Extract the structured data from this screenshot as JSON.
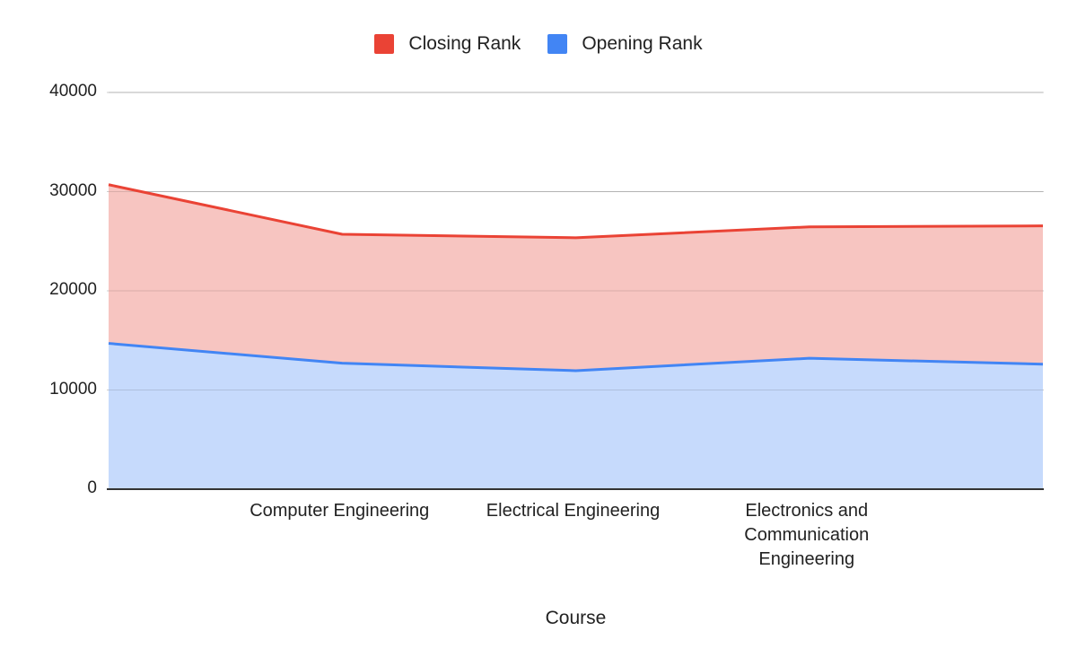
{
  "legend": {
    "items": [
      {
        "label": "Closing Rank",
        "color": "#ea4335"
      },
      {
        "label": "Opening Rank",
        "color": "#4285f4"
      }
    ]
  },
  "axes": {
    "x_title": "Course",
    "y_ticks": [
      "40000",
      "30000",
      "20000",
      "10000",
      "0"
    ],
    "x_visible_labels": [
      {
        "index": 1,
        "lines": [
          "Computer Engineering"
        ]
      },
      {
        "index": 2,
        "lines": [
          "Electrical Engineering"
        ]
      },
      {
        "index": 3,
        "lines": [
          "Electronics and",
          "Communication",
          "Engineering"
        ]
      }
    ]
  },
  "colors": {
    "closing_line": "#ea4335",
    "closing_fill": "#f7c5c1",
    "opening_line": "#4285f4",
    "opening_fill": "#c6dafc",
    "grid": "#cccccc",
    "axis": "#333333"
  },
  "chart_data": {
    "type": "area",
    "title": "",
    "xlabel": "Course",
    "ylabel": "",
    "ylim": [
      0,
      40000
    ],
    "yticks": [
      0,
      10000,
      20000,
      30000,
      40000
    ],
    "grid": true,
    "legend_position": "top",
    "categories": [
      "",
      "Computer Engineering",
      "Electrical Engineering",
      "Electronics and Communication Engineering",
      ""
    ],
    "series": [
      {
        "name": "Closing Rank",
        "values": [
          30700,
          25700,
          25350,
          26450,
          26550
        ]
      },
      {
        "name": "Opening Rank",
        "values": [
          14700,
          12700,
          11950,
          13200,
          12600
        ]
      }
    ]
  }
}
